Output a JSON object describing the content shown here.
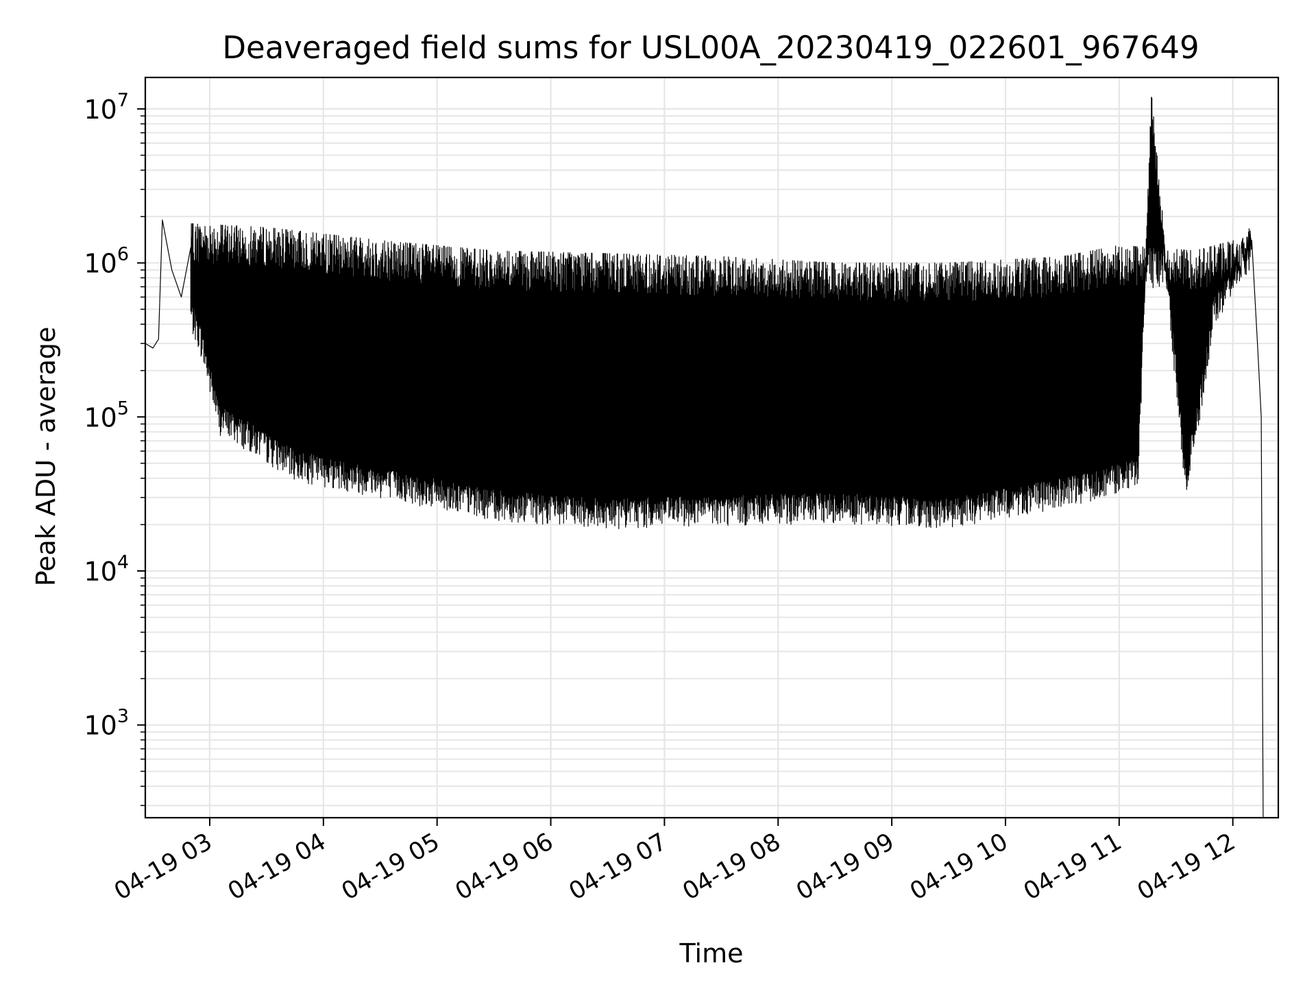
{
  "chart_data": {
    "type": "line",
    "title": "Deaveraged field sums for USL00A_20230419_022601_967649",
    "xlabel": "Time",
    "ylabel": "Peak ADU - average",
    "yscale": "log",
    "ylim": [
      250,
      16000000
    ],
    "xlim": [
      "2023-04-19T02:26:00",
      "2023-04-19T12:24:00"
    ],
    "grid": true,
    "line_color": "#000000",
    "grid_color": "#e6e6e6",
    "x_ticks": [
      {
        "value": "2023-04-19T03:00",
        "label": "04-19 03"
      },
      {
        "value": "2023-04-19T04:00",
        "label": "04-19 04"
      },
      {
        "value": "2023-04-19T05:00",
        "label": "04-19 05"
      },
      {
        "value": "2023-04-19T06:00",
        "label": "04-19 06"
      },
      {
        "value": "2023-04-19T07:00",
        "label": "04-19 07"
      },
      {
        "value": "2023-04-19T08:00",
        "label": "04-19 08"
      },
      {
        "value": "2023-04-19T09:00",
        "label": "04-19 09"
      },
      {
        "value": "2023-04-19T10:00",
        "label": "04-19 10"
      },
      {
        "value": "2023-04-19T11:00",
        "label": "04-19 11"
      },
      {
        "value": "2023-04-19T12:00",
        "label": "04-19 12"
      }
    ],
    "y_ticks": [
      {
        "value": 1000,
        "base": "10",
        "exp": "3"
      },
      {
        "value": 10000,
        "base": "10",
        "exp": "4"
      },
      {
        "value": 100000,
        "base": "10",
        "exp": "5"
      },
      {
        "value": 1000000,
        "base": "10",
        "exp": "6"
      },
      {
        "value": 10000000,
        "base": "10",
        "exp": "7"
      }
    ],
    "series": [
      {
        "points": [
          {
            "x": "2023-04-19T02:26:00",
            "y": 300000
          },
          {
            "x": "2023-04-19T02:30:00",
            "y": 280000
          },
          {
            "x": "2023-04-19T02:33:00",
            "y": 320000
          },
          {
            "x": "2023-04-19T02:35:00",
            "y": 1900000
          },
          {
            "x": "2023-04-19T02:40:00",
            "y": 900000
          },
          {
            "x": "2023-04-19T02:45:00",
            "y": 600000
          },
          {
            "x": "2023-04-19T02:55:00",
            "y": 300000
          },
          {
            "x": "2023-04-19T03:05:00",
            "y": 90000
          },
          {
            "x": "2023-04-19T03:20:00",
            "y": 70000
          },
          {
            "x": "2023-04-19T03:45:00",
            "y": 45000
          },
          {
            "x": "2023-04-19T04:30:00",
            "y": 35000
          },
          {
            "x": "2023-04-19T05:30:00",
            "y": 25000
          },
          {
            "x": "2023-04-19T06:30:00",
            "y": 22000
          },
          {
            "x": "2023-04-19T07:30:00",
            "y": 23000
          },
          {
            "x": "2023-04-19T08:30:00",
            "y": 24000
          },
          {
            "x": "2023-04-19T09:30:00",
            "y": 22000
          },
          {
            "x": "2023-04-19T10:30:00",
            "y": 30000
          },
          {
            "x": "2023-04-19T11:10:00",
            "y": 40000
          },
          {
            "x": "2023-04-19T11:17:00",
            "y": 9800000
          },
          {
            "x": "2023-04-19T11:35:00",
            "y": 35000
          },
          {
            "x": "2023-04-19T11:42:00",
            "y": 100000
          },
          {
            "x": "2023-04-19T11:50:00",
            "y": 450000
          },
          {
            "x": "2023-04-19T12:00:00",
            "y": 700000
          },
          {
            "x": "2023-04-19T12:10:00",
            "y": 1400000
          },
          {
            "x": "2023-04-19T12:13:00",
            "y": 300000
          },
          {
            "x": "2023-04-19T12:15:00",
            "y": 100000
          },
          {
            "x": "2023-04-19T12:16:00",
            "y": 250
          }
        ],
        "oscillation_envelope": {
          "upper": [
            {
              "x": "2023-04-19T02:50:00",
              "y": 1800000
            },
            {
              "x": "2023-04-19T03:30:00",
              "y": 1700000
            },
            {
              "x": "2023-04-19T04:30:00",
              "y": 1400000
            },
            {
              "x": "2023-04-19T05:30:00",
              "y": 1200000
            },
            {
              "x": "2023-04-19T06:30:00",
              "y": 1150000
            },
            {
              "x": "2023-04-19T07:30:00",
              "y": 1100000
            },
            {
              "x": "2023-04-19T08:30:00",
              "y": 1000000
            },
            {
              "x": "2023-04-19T09:30:00",
              "y": 1000000
            },
            {
              "x": "2023-04-19T10:30:00",
              "y": 1100000
            },
            {
              "x": "2023-04-19T11:00:00",
              "y": 1300000
            },
            {
              "x": "2023-04-19T11:40:00",
              "y": 1200000
            },
            {
              "x": "2023-04-19T12:10:00",
              "y": 1500000
            }
          ]
        }
      }
    ]
  }
}
